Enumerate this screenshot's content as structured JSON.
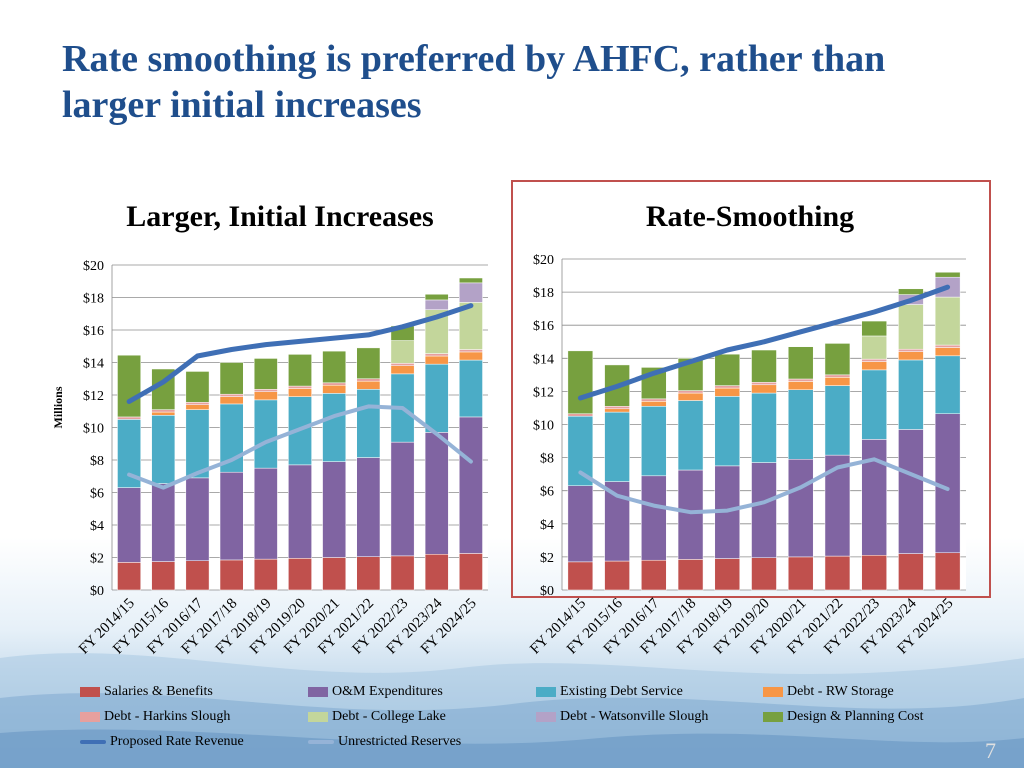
{
  "slide": {
    "title": "Rate smoothing is preferred by AHFC, rather than larger initial increases",
    "page_number": "7"
  },
  "panels": {
    "left_title": "Larger, Initial Increases",
    "right_title": "Rate-Smoothing"
  },
  "colors": {
    "Salaries & Benefits": "#c0504d",
    "O&M Expenditures": "#8064a2",
    "Existing Debt Service": "#4bacc6",
    "Debt - RW Storage": "#f79646",
    "Debt - Harkins Slough": "#e6a09e",
    "Debt - College Lake": "#c3d69b",
    "Debt - Watsonville Slough": "#b3a2c7",
    "Design & Planning Cost": "#77a03f",
    "Proposed Rate Revenue": "#3f6fb5",
    "Unrestricted Reserves": "#95b3d7"
  },
  "legend": [
    {
      "label": "Salaries & Benefits",
      "kind": "box"
    },
    {
      "label": "O&M Expenditures",
      "kind": "box"
    },
    {
      "label": "Existing Debt Service",
      "kind": "box"
    },
    {
      "label": "Debt - RW Storage",
      "kind": "box"
    },
    {
      "label": "Debt - Harkins Slough",
      "kind": "box"
    },
    {
      "label": "Debt - College Lake",
      "kind": "box"
    },
    {
      "label": "Debt - Watsonville Slough",
      "kind": "box"
    },
    {
      "label": "Design & Planning Cost",
      "kind": "box"
    },
    {
      "label": "Proposed Rate Revenue",
      "kind": "line"
    },
    {
      "label": "Unrestricted Reserves",
      "kind": "line"
    }
  ],
  "chart_data": [
    {
      "type": "bar",
      "stacked": true,
      "title": "Larger, Initial Increases",
      "ylabel": "Millions",
      "ylim": [
        0,
        20
      ],
      "yticks": [
        "$0",
        "$2",
        "$4",
        "$6",
        "$8",
        "$10",
        "$12",
        "$14",
        "$16",
        "$18",
        "$20"
      ],
      "categories": [
        "FY 2014/15",
        "FY 2015/16",
        "FY 2016/17",
        "FY 2017/18",
        "FY 2018/19",
        "FY 2019/20",
        "FY 2020/21",
        "FY 2021/22",
        "FY 2022/23",
        "FY 2023/24",
        "FY 2024/25"
      ],
      "series": [
        {
          "name": "Salaries & Benefits",
          "values": [
            1.7,
            1.75,
            1.8,
            1.85,
            1.9,
            1.95,
            2.0,
            2.05,
            2.1,
            2.2,
            2.25
          ]
        },
        {
          "name": "O&M Expenditures",
          "values": [
            4.6,
            4.8,
            5.1,
            5.4,
            5.6,
            5.75,
            5.9,
            6.1,
            7.0,
            7.5,
            8.4
          ]
        },
        {
          "name": "Existing Debt Service",
          "values": [
            4.2,
            4.2,
            4.2,
            4.2,
            4.2,
            4.2,
            4.2,
            4.2,
            4.2,
            4.2,
            3.5
          ]
        },
        {
          "name": "Debt - RW Storage",
          "values": [
            0,
            0.2,
            0.3,
            0.45,
            0.5,
            0.5,
            0.5,
            0.5,
            0.5,
            0.5,
            0.5
          ]
        },
        {
          "name": "Debt - Harkins Slough",
          "values": [
            0.15,
            0.15,
            0.15,
            0.15,
            0.15,
            0.15,
            0.15,
            0.15,
            0.15,
            0.15,
            0.15
          ]
        },
        {
          "name": "Debt - College Lake",
          "values": [
            0,
            0,
            0,
            0,
            0,
            0,
            0,
            0,
            1.4,
            2.7,
            2.9
          ]
        },
        {
          "name": "Debt - Watsonville Slough",
          "values": [
            0,
            0,
            0,
            0,
            0,
            0,
            0,
            0,
            0,
            0.6,
            1.2
          ]
        },
        {
          "name": "Design & Planning Cost",
          "values": [
            3.8,
            2.5,
            1.9,
            1.95,
            1.9,
            1.95,
            1.95,
            1.9,
            0.9,
            0.35,
            0.3
          ]
        }
      ],
      "lines": [
        {
          "name": "Proposed Rate Revenue",
          "values": [
            11.6,
            12.8,
            14.4,
            14.8,
            15.1,
            15.3,
            15.5,
            15.7,
            16.2,
            16.8,
            17.5
          ]
        },
        {
          "name": "Unrestricted Reserves",
          "values": [
            7.1,
            6.3,
            7.2,
            8.0,
            9.1,
            9.9,
            10.7,
            11.3,
            11.2,
            9.6,
            7.9
          ]
        }
      ]
    },
    {
      "type": "bar",
      "stacked": true,
      "title": "Rate-Smoothing",
      "ylim": [
        0,
        20
      ],
      "yticks": [
        "$0",
        "$2",
        "$4",
        "$6",
        "$8",
        "$10",
        "$12",
        "$14",
        "$16",
        "$18",
        "$20"
      ],
      "categories": [
        "FY 2014/15",
        "FY 2015/16",
        "FY 2016/17",
        "FY 2017/18",
        "FY 2018/19",
        "FY 2019/20",
        "FY 2020/21",
        "FY 2021/22",
        "FY 2022/23",
        "FY 2023/24",
        "FY 2024/25"
      ],
      "series": [
        {
          "name": "Salaries & Benefits",
          "values": [
            1.7,
            1.75,
            1.8,
            1.85,
            1.9,
            1.95,
            2.0,
            2.05,
            2.1,
            2.2,
            2.25
          ]
        },
        {
          "name": "O&M Expenditures",
          "values": [
            4.6,
            4.8,
            5.1,
            5.4,
            5.6,
            5.75,
            5.9,
            6.1,
            7.0,
            7.5,
            8.4
          ]
        },
        {
          "name": "Existing Debt Service",
          "values": [
            4.2,
            4.2,
            4.2,
            4.2,
            4.2,
            4.2,
            4.2,
            4.2,
            4.2,
            4.2,
            3.5
          ]
        },
        {
          "name": "Debt - RW Storage",
          "values": [
            0,
            0.2,
            0.3,
            0.45,
            0.5,
            0.5,
            0.5,
            0.5,
            0.5,
            0.5,
            0.5
          ]
        },
        {
          "name": "Debt - Harkins Slough",
          "values": [
            0.15,
            0.15,
            0.15,
            0.15,
            0.15,
            0.15,
            0.15,
            0.15,
            0.15,
            0.15,
            0.15
          ]
        },
        {
          "name": "Debt - College Lake",
          "values": [
            0,
            0,
            0,
            0,
            0,
            0,
            0,
            0,
            1.4,
            2.7,
            2.9
          ]
        },
        {
          "name": "Debt - Watsonville Slough",
          "values": [
            0,
            0,
            0,
            0,
            0,
            0,
            0,
            0,
            0,
            0.6,
            1.2
          ]
        },
        {
          "name": "Design & Planning Cost",
          "values": [
            3.8,
            2.5,
            1.9,
            1.95,
            1.9,
            1.95,
            1.95,
            1.9,
            0.9,
            0.35,
            0.3
          ]
        }
      ],
      "lines": [
        {
          "name": "Proposed Rate Revenue",
          "values": [
            11.6,
            12.3,
            13.1,
            13.8,
            14.5,
            15.0,
            15.6,
            16.2,
            16.8,
            17.5,
            18.3
          ]
        },
        {
          "name": "Unrestricted Reserves",
          "values": [
            7.1,
            5.7,
            5.1,
            4.7,
            4.8,
            5.3,
            6.2,
            7.4,
            7.9,
            7.0,
            6.1
          ]
        }
      ]
    }
  ]
}
